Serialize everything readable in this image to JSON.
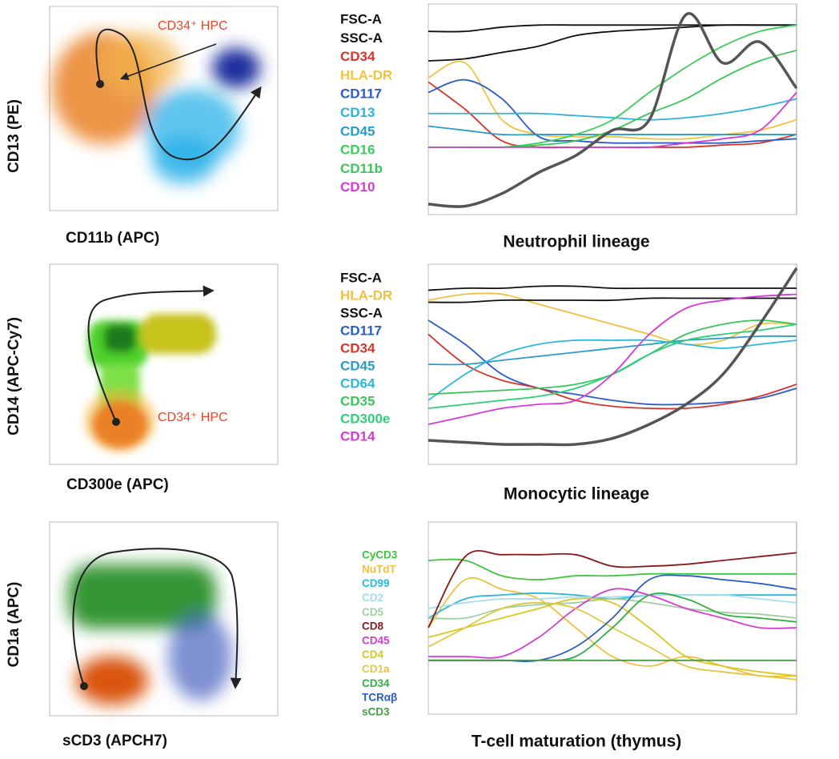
{
  "panels": [
    {
      "scatter": {
        "x_label": "CD11b (APC)",
        "y_label": "CD13 (PE)",
        "annotation": "CD34⁺ HPC"
      },
      "profile": {
        "title": "Neutrophil lineage",
        "markers": [
          {
            "name": "FSC-A",
            "color": "#111111"
          },
          {
            "name": "SSC-A",
            "color": "#111111"
          },
          {
            "name": "CD34",
            "color": "#d9342b"
          },
          {
            "name": "HLA-DR",
            "color": "#f2c340"
          },
          {
            "name": "CD117",
            "color": "#2a5cc9"
          },
          {
            "name": "CD13",
            "color": "#2bb3d9"
          },
          {
            "name": "CD45",
            "color": "#2a9bc9"
          },
          {
            "name": "CD16",
            "color": "#3ccc5a"
          },
          {
            "name": "CD11b",
            "color": "#3fc45a"
          },
          {
            "name": "CD10",
            "color": "#d63ad6"
          }
        ]
      }
    },
    {
      "scatter": {
        "x_label": "CD300e (APC)",
        "y_label": "CD14 (APC-Cy7)",
        "annotation": "CD34⁺ HPC"
      },
      "profile": {
        "title": "Monocytic lineage",
        "markers": [
          {
            "name": "FSC-A",
            "color": "#111111"
          },
          {
            "name": "HLA-DR",
            "color": "#f0c040"
          },
          {
            "name": "SSC-A",
            "color": "#111111"
          },
          {
            "name": "CD117",
            "color": "#2a5cc9"
          },
          {
            "name": "CD34",
            "color": "#d9342b"
          },
          {
            "name": "CD45",
            "color": "#2a9bc9"
          },
          {
            "name": "CD64",
            "color": "#2bb8d9"
          },
          {
            "name": "CD35",
            "color": "#3cc45a"
          },
          {
            "name": "CD300e",
            "color": "#2fcf7a"
          },
          {
            "name": "CD14",
            "color": "#d63ad6"
          }
        ]
      }
    },
    {
      "scatter": {
        "x_label": "sCD3 (APCH7)",
        "y_label": "CD1a (APC)"
      },
      "profile": {
        "title": "T-cell maturation (thymus)",
        "markers": [
          {
            "name": "CyCD3",
            "color": "#3fc43f"
          },
          {
            "name": "NuTdT",
            "color": "#f0c040"
          },
          {
            "name": "CD99",
            "color": "#2bb8d9"
          },
          {
            "name": "CD2",
            "color": "#a8dcef"
          },
          {
            "name": "CD5",
            "color": "#a0d0a0"
          },
          {
            "name": "CD8",
            "color": "#8b1a1a"
          },
          {
            "name": "CD45",
            "color": "#d63ad6"
          },
          {
            "name": "CD4",
            "color": "#d8c820"
          },
          {
            "name": "CD1a",
            "color": "#e0c840"
          },
          {
            "name": "CD34",
            "color": "#30b040"
          },
          {
            "name": "TCRαβ",
            "color": "#2a5cc9"
          },
          {
            "name": "sCD3",
            "color": "#4a9a4a"
          }
        ]
      }
    }
  ]
}
